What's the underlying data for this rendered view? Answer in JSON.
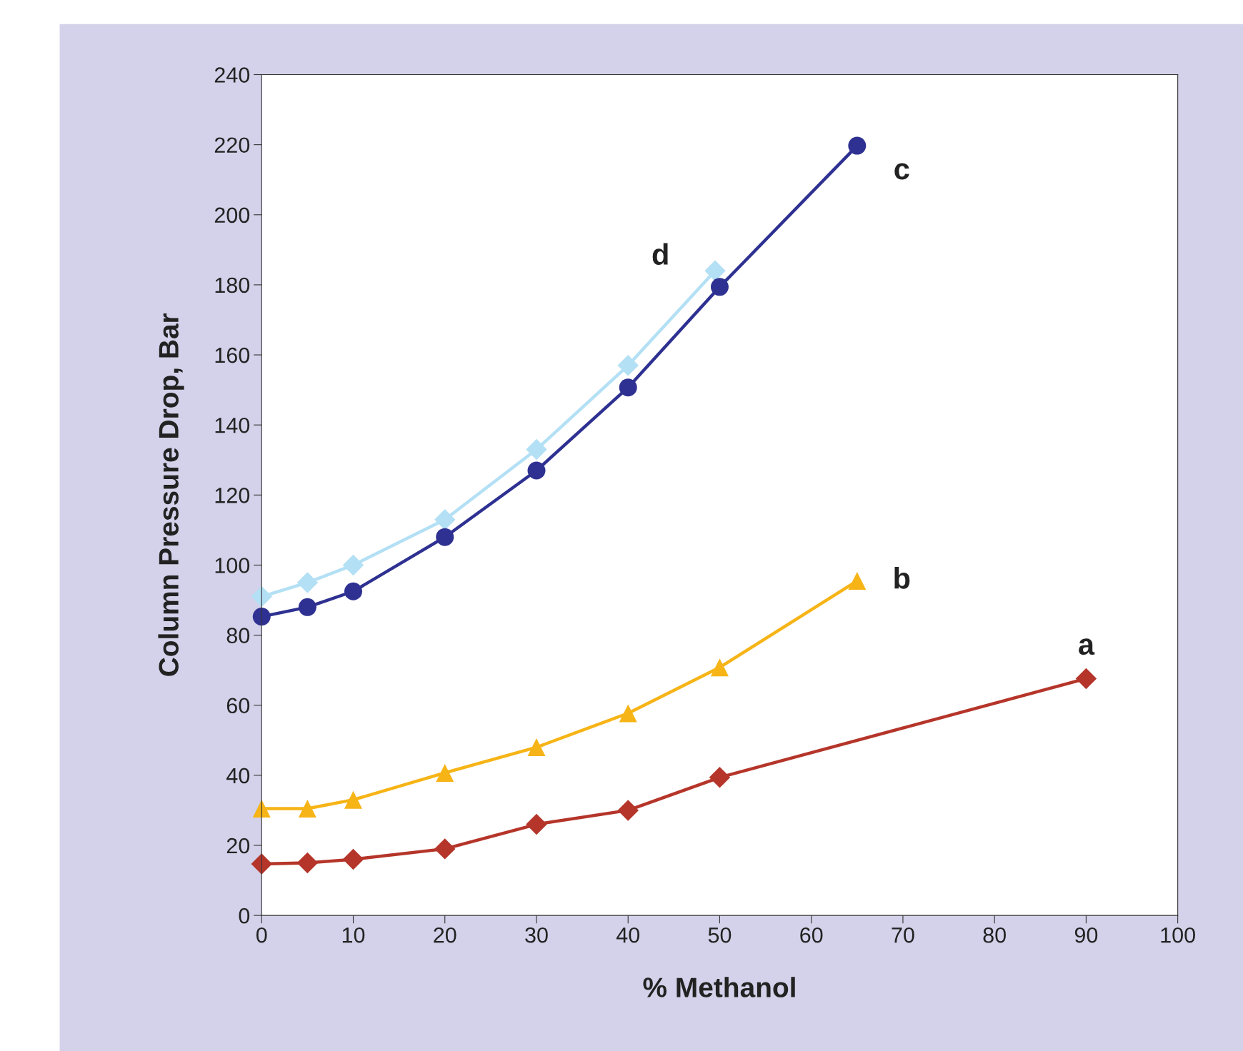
{
  "chart_data": {
    "type": "line",
    "xlabel": "% Methanol",
    "ylabel": "Column Pressure Drop, Bar",
    "xlim": [
      0,
      100
    ],
    "xticks": [
      0,
      10,
      20,
      30,
      40,
      50,
      60,
      70,
      80,
      90,
      100
    ],
    "ylim": [
      0,
      240
    ],
    "yticks": [
      0,
      20,
      40,
      60,
      80,
      100,
      120,
      140,
      160,
      180,
      200,
      220,
      240
    ],
    "grid": false,
    "legend": false,
    "line_style": "solid",
    "series": [
      {
        "name": "a",
        "color": "#b5352a",
        "marker": "diamond",
        "x": [
          0,
          5,
          10,
          20,
          30,
          40,
          50,
          90
        ],
        "values": [
          14.7,
          15,
          16,
          19,
          26,
          30,
          39.4,
          67.6
        ]
      },
      {
        "name": "b",
        "color": "#f6b417",
        "marker": "triangle",
        "x": [
          0,
          5,
          10,
          20,
          30,
          40,
          50,
          65
        ],
        "values": [
          30.5,
          30.5,
          33,
          40.7,
          48,
          57.7,
          70.8,
          95.5
        ]
      },
      {
        "name": "d",
        "color": "#b3e0f5",
        "marker": "diamond",
        "x": [
          0,
          5,
          10,
          20,
          30,
          40,
          49.5
        ],
        "values": [
          91,
          95,
          100,
          113,
          133,
          157,
          184
        ]
      },
      {
        "name": "c",
        "color": "#2e3191",
        "marker": "circle",
        "x": [
          0,
          5,
          10,
          20,
          30,
          40,
          50,
          65
        ],
        "values": [
          85.3,
          88,
          92.5,
          108,
          127,
          150.7,
          179.4,
          219.7
        ]
      }
    ]
  }
}
